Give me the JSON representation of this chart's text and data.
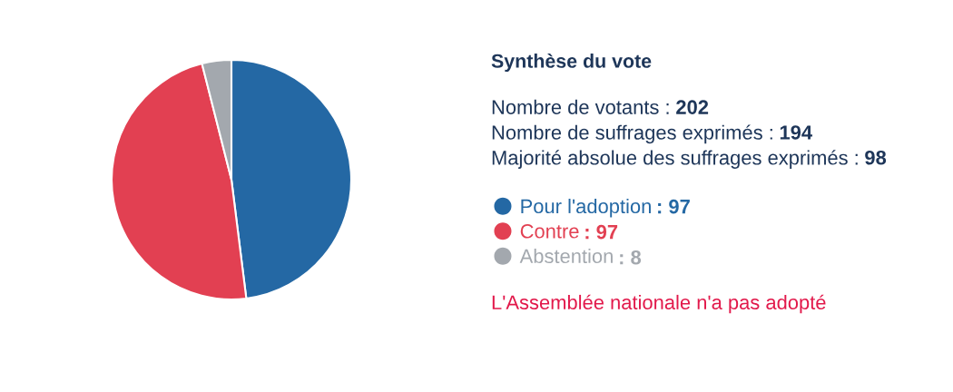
{
  "chart_data": {
    "type": "pie",
    "title": "Synthèse du vote",
    "annotations": [
      "Nombre de votants : 202",
      "Nombre de suffrages exprimés : 194",
      "Majorité absolue des suffrages exprimés : 98",
      "L'Assemblée nationale n'a pas adopté"
    ],
    "categories": [
      "Pour l'adoption",
      "Contre",
      "Abstention"
    ],
    "values": [
      97,
      97,
      8
    ],
    "colors": [
      "#2468a4",
      "#e24052",
      "#a3a8ae"
    ],
    "value_labels": [
      ": 97",
      ": 97",
      ": 8"
    ],
    "legend": "right"
  }
}
